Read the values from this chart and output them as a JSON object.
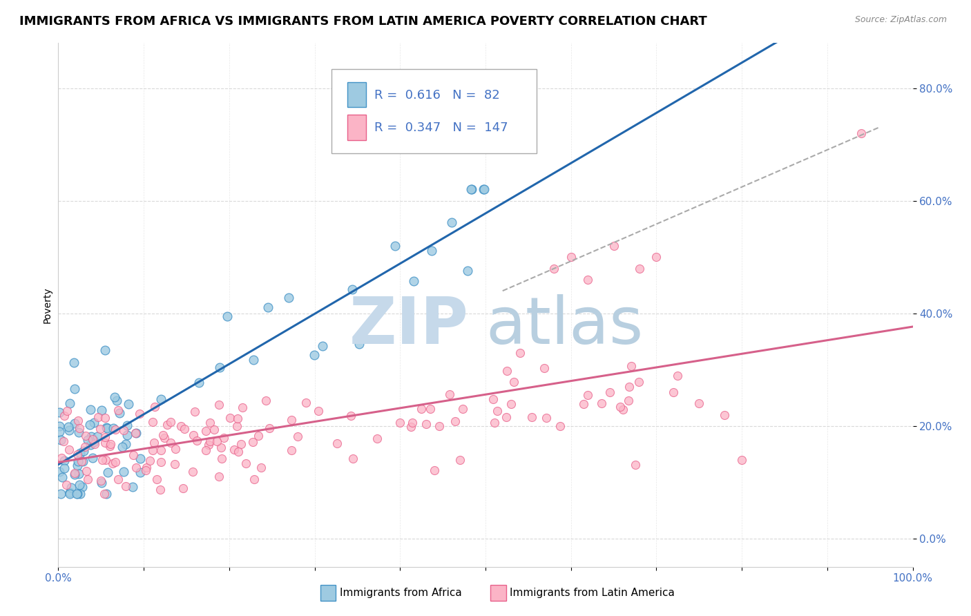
{
  "title": "IMMIGRANTS FROM AFRICA VS IMMIGRANTS FROM LATIN AMERICA POVERTY CORRELATION CHART",
  "source_text": "Source: ZipAtlas.com",
  "ylabel": "Poverty",
  "xlim": [
    0.0,
    1.0
  ],
  "ylim": [
    -0.05,
    0.88
  ],
  "ytick_labels": [
    "0.0%",
    "20.0%",
    "40.0%",
    "60.0%",
    "80.0%"
  ],
  "ytick_values": [
    0.0,
    0.2,
    0.4,
    0.6,
    0.8
  ],
  "africa_color": "#9ecae1",
  "africa_edge": "#4292c6",
  "latin_color": "#fbb4c6",
  "latin_edge": "#e8608a",
  "africa_R": 0.616,
  "africa_N": 82,
  "latin_R": 0.347,
  "latin_N": 147,
  "watermark_zip_color": "#c6d9ea",
  "watermark_atlas_color": "#b8cfe0",
  "legend_R_color": "#4472c4",
  "title_fontsize": 13,
  "axis_label_fontsize": 10,
  "tick_fontsize": 11,
  "africa_line_color": "#2166ac",
  "latin_line_color": "#d6608a",
  "dash_line_color": "#aaaaaa",
  "grid_color": "#d0d0d0"
}
